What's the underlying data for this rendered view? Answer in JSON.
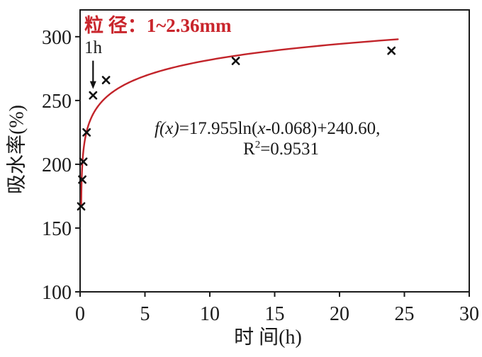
{
  "colors": {
    "frame": "#1a1a1a",
    "marker": "#111111",
    "curve_red": "#c2242a",
    "title_red": "#c9252c",
    "text": "#1a1a1a"
  },
  "chart_data": {
    "type": "scatter",
    "title_annotation": "粒 径：1~2.36mm",
    "xlabel": "时 间(h)",
    "ylabel": "吸水率(%)",
    "xlim": [
      0,
      30
    ],
    "ylim": [
      100,
      321
    ],
    "x_ticks": [
      0,
      5,
      10,
      15,
      20,
      25,
      30
    ],
    "y_ticks": [
      100,
      150,
      200,
      250,
      300
    ],
    "grid": false,
    "legend": "none",
    "series": [
      {
        "name": "measured-absorption",
        "type": "scatter",
        "marker": "x",
        "points": [
          [
            0.083,
            167
          ],
          [
            0.167,
            188
          ],
          [
            0.25,
            202
          ],
          [
            0.5,
            225
          ],
          [
            1,
            254
          ],
          [
            2,
            266
          ],
          [
            12,
            281
          ],
          [
            24,
            289
          ]
        ]
      },
      {
        "name": "log-fit-curve",
        "type": "line",
        "equation_text": "f(x)=17.955ln(x-0.068)+240.60, R2=0.9531",
        "a": 17.955,
        "x0": 0.068,
        "b": 240.6,
        "r_squared": "0.9531",
        "x_range": [
          0.086,
          24.5
        ]
      }
    ],
    "annotations": {
      "arrow_label": "1h",
      "arrow_target_point": [
        1,
        254
      ],
      "equation_line1_parts": [
        {
          "t": "f(x)",
          "i": true
        },
        {
          "t": "=17.955ln(",
          "i": false
        },
        {
          "t": "x",
          "i": true
        },
        {
          "t": "-0.068)+240.60,",
          "i": false
        }
      ],
      "equation_line2_parts": [
        {
          "t": "R",
          "i": false
        },
        {
          "t": "2",
          "sup": true
        },
        {
          "t": "=0.9531",
          "i": false
        }
      ]
    }
  }
}
